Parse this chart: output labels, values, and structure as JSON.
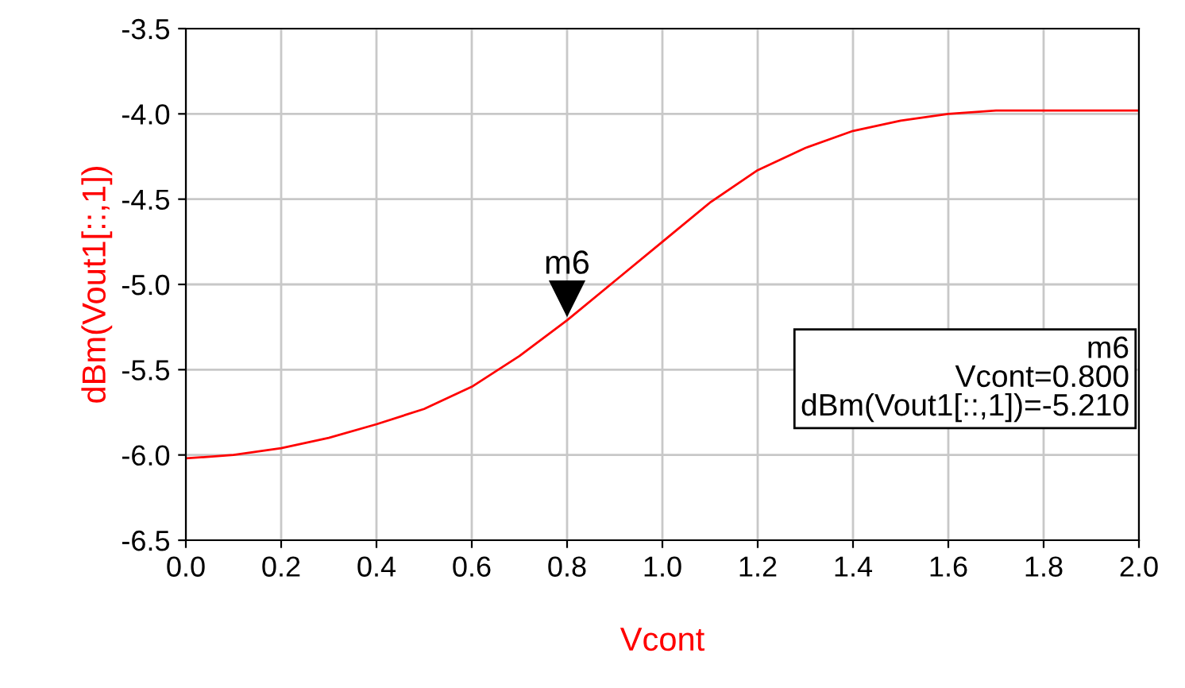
{
  "chart_data": {
    "type": "line",
    "xlabel": "Vcont",
    "ylabel": "dBm(Vout1[::,1])",
    "x": [
      0.0,
      0.1,
      0.2,
      0.3,
      0.4,
      0.5,
      0.6,
      0.7,
      0.8,
      0.9,
      1.0,
      1.1,
      1.2,
      1.3,
      1.4,
      1.5,
      1.6,
      1.7,
      1.8,
      1.9,
      2.0
    ],
    "series": [
      {
        "color": "#ff0000",
        "values": [
          -6.02,
          -6.0,
          -5.96,
          -5.9,
          -5.82,
          -5.73,
          -5.6,
          -5.42,
          -5.21,
          -4.98,
          -4.75,
          -4.52,
          -4.33,
          -4.2,
          -4.1,
          -4.04,
          -4.0,
          -3.98,
          -3.98,
          -3.98,
          -3.98
        ]
      }
    ],
    "xlim": [
      0.0,
      2.0
    ],
    "xticks": [
      {
        "value": 0,
        "label": "0.0"
      },
      {
        "value": 0.2,
        "label": "0.2"
      },
      {
        "value": 0.4,
        "label": "0.4"
      },
      {
        "value": 0.6,
        "label": "0.6"
      },
      {
        "value": 0.8,
        "label": "0.8"
      },
      {
        "value": 1.0,
        "label": "1.0"
      },
      {
        "value": 1.2,
        "label": "1.2"
      },
      {
        "value": 1.4,
        "label": "1.4"
      },
      {
        "value": 1.6,
        "label": "1.6"
      },
      {
        "value": 1.8,
        "label": "1.8"
      },
      {
        "value": 2.0,
        "label": "2.0"
      }
    ],
    "ylim": [
      -6.5,
      -3.5
    ],
    "yticks": [
      {
        "value": -6.5,
        "label": "-6.5"
      },
      {
        "value": -6.0,
        "label": "-6.0"
      },
      {
        "value": -5.5,
        "label": "-5.5"
      },
      {
        "value": -5.0,
        "label": "-5.0"
      },
      {
        "value": -4.5,
        "label": "-4.5"
      },
      {
        "value": -4.0,
        "label": "-4.0"
      },
      {
        "value": -3.5,
        "label": "-3.5"
      }
    ],
    "grid": true,
    "line_style": "solid",
    "marker": "none",
    "annotations": [
      {
        "text": "m6",
        "x": 0.8,
        "y": -5.21
      },
      "m6\nVcont=0.800\ndBm(Vout1[::,1])=-5.210"
    ]
  }
}
